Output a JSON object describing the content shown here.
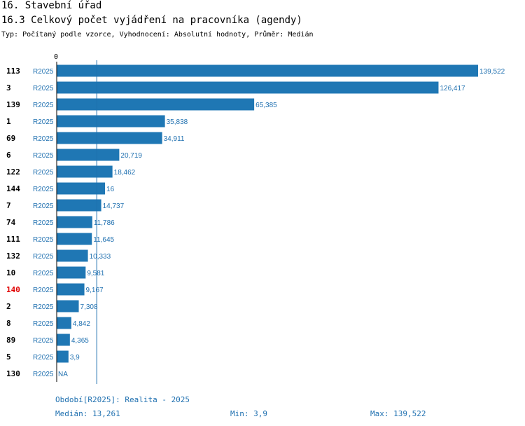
{
  "header": {
    "title": "16. Stavební úřad",
    "subtitle": "16.3 Celkový počet vyjádření na pracovníka (agendy)",
    "meta": "Typ: Počítaný podle vzorce, Vyhodnocení: Absolutní hodnoty, Průměr: Medián"
  },
  "chart_data": {
    "type": "bar",
    "orientation": "horizontal",
    "title": "16.3 Celkový počet vyjádření na pracovníka (agendy)",
    "x_tick": "0",
    "xlim": [
      0,
      139.522
    ],
    "median": 13.261,
    "highlight_color": "#e00000",
    "bar_color": "#1f77b4",
    "rows": [
      {
        "id": "113",
        "period": "R2025",
        "value": 139.522,
        "label": "139,522"
      },
      {
        "id": "3",
        "period": "R2025",
        "value": 126.417,
        "label": "126,417"
      },
      {
        "id": "139",
        "period": "R2025",
        "value": 65.385,
        "label": "65,385"
      },
      {
        "id": "1",
        "period": "R2025",
        "value": 35.838,
        "label": "35,838"
      },
      {
        "id": "69",
        "period": "R2025",
        "value": 34.911,
        "label": "34,911"
      },
      {
        "id": "6",
        "period": "R2025",
        "value": 20.719,
        "label": "20,719"
      },
      {
        "id": "122",
        "period": "R2025",
        "value": 18.462,
        "label": "18,462"
      },
      {
        "id": "144",
        "period": "R2025",
        "value": 16,
        "label": "16"
      },
      {
        "id": "7",
        "period": "R2025",
        "value": 14.737,
        "label": "14,737"
      },
      {
        "id": "74",
        "period": "R2025",
        "value": 11.786,
        "label": "11,786"
      },
      {
        "id": "111",
        "period": "R2025",
        "value": 11.645,
        "label": "11,645"
      },
      {
        "id": "132",
        "period": "R2025",
        "value": 10.333,
        "label": "10,333"
      },
      {
        "id": "10",
        "period": "R2025",
        "value": 9.581,
        "label": "9,581"
      },
      {
        "id": "140",
        "period": "R2025",
        "value": 9.167,
        "label": "9,167",
        "highlight": true
      },
      {
        "id": "2",
        "period": "R2025",
        "value": 7.308,
        "label": "7,308"
      },
      {
        "id": "8",
        "period": "R2025",
        "value": 4.842,
        "label": "4,842"
      },
      {
        "id": "89",
        "period": "R2025",
        "value": 4.365,
        "label": "4,365"
      },
      {
        "id": "5",
        "period": "R2025",
        "value": 3.9,
        "label": "3,9"
      },
      {
        "id": "130",
        "period": "R2025",
        "value": null,
        "label": "NA"
      }
    ]
  },
  "footer": {
    "period": "Období[R2025]: Realita - 2025",
    "median": "Medián: 13,261",
    "min": "Min: 3,9",
    "max": "Max: 139,522"
  }
}
